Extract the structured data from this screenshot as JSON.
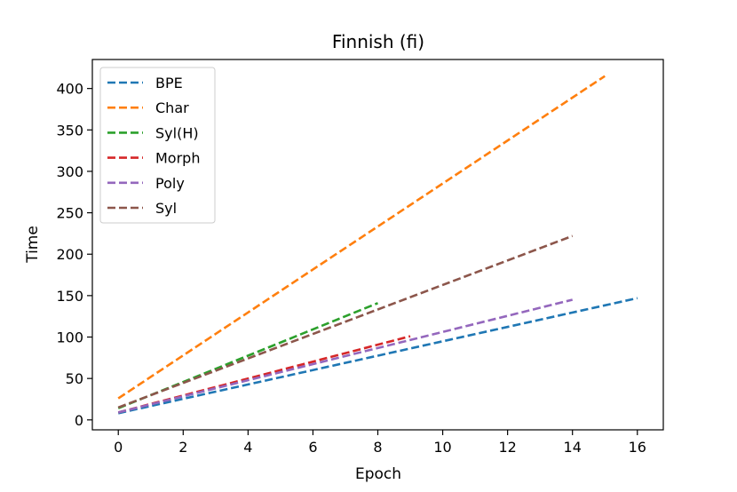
{
  "chart_data": {
    "type": "line",
    "title": "Finnish (fi)",
    "xlabel": "Epoch",
    "ylabel": "Time",
    "xlim": [
      -0.8,
      16.8
    ],
    "ylim": [
      -12,
      435
    ],
    "xticks": [
      0,
      2,
      4,
      6,
      8,
      10,
      12,
      14,
      16
    ],
    "yticks": [
      0,
      50,
      100,
      150,
      200,
      250,
      300,
      350,
      400
    ],
    "grid": false,
    "legend_position": "top-left",
    "line_style": "dashed",
    "series": [
      {
        "name": "BPE",
        "color": "#1f77b4",
        "x": [
          0,
          16
        ],
        "y": [
          8,
          147
        ]
      },
      {
        "name": "Char",
        "color": "#ff7f0e",
        "x": [
          0,
          15
        ],
        "y": [
          26,
          415
        ]
      },
      {
        "name": "Syl(H)",
        "color": "#2ca02c",
        "x": [
          0,
          8
        ],
        "y": [
          14,
          141
        ]
      },
      {
        "name": "Morph",
        "color": "#d62728",
        "x": [
          0,
          9
        ],
        "y": [
          9,
          101
        ]
      },
      {
        "name": "Poly",
        "color": "#9467bd",
        "x": [
          0,
          14
        ],
        "y": [
          9,
          145
        ]
      },
      {
        "name": "Syl",
        "color": "#8c564b",
        "x": [
          0,
          14
        ],
        "y": [
          15,
          222
        ]
      }
    ]
  }
}
